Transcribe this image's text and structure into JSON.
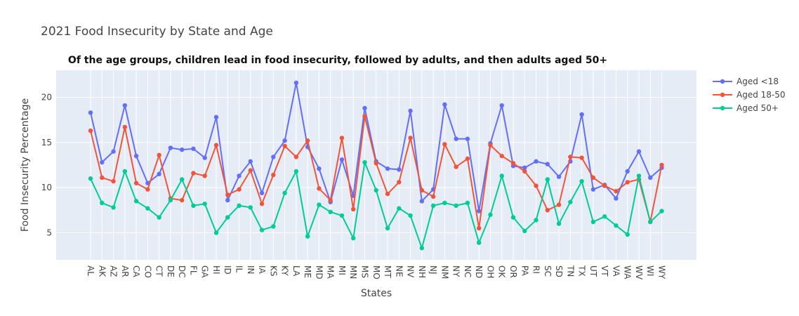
{
  "chart_data": {
    "type": "line",
    "title": "2021 Food Insecurity by State and Age",
    "subtitle": "Of the age groups, children lead in food insecurity, followed by adults, and then adults aged 50+",
    "xlabel": "States",
    "ylabel": "Food Insecurity Percentage",
    "ylim": [
      2,
      23
    ],
    "yticks": [
      5,
      10,
      15,
      20
    ],
    "grid": true,
    "legend_position": "top-right",
    "categories": [
      "AL",
      "AK",
      "AZ",
      "AR",
      "CA",
      "CO",
      "CT",
      "DE",
      "DC",
      "FL",
      "GA",
      "HI",
      "ID",
      "IL",
      "IN",
      "IA",
      "KS",
      "KY",
      "LA",
      "ME",
      "MD",
      "MA",
      "MI",
      "MN",
      "MS",
      "MO",
      "MT",
      "NE",
      "NV",
      "NH",
      "NJ",
      "NM",
      "NY",
      "NC",
      "ND",
      "OH",
      "OK",
      "OR",
      "PA",
      "RI",
      "SC",
      "SD",
      "TN",
      "TX",
      "UT",
      "VT",
      "VA",
      "WA",
      "WV",
      "WI",
      "WY"
    ],
    "series": [
      {
        "name": "Aged <18",
        "color": "#636efa",
        "values": [
          18.3,
          12.8,
          14.0,
          19.1,
          13.5,
          10.5,
          11.5,
          14.4,
          14.2,
          14.3,
          13.3,
          17.8,
          8.6,
          11.3,
          12.9,
          9.4,
          13.4,
          15.2,
          21.6,
          14.5,
          12.1,
          8.4,
          13.1,
          9.1,
          18.8,
          12.9,
          12.1,
          12.0,
          18.5,
          8.5,
          9.8,
          19.2,
          15.4,
          15.4,
          7.4,
          14.9,
          19.1,
          12.4,
          12.2,
          12.9,
          12.6,
          11.2,
          12.9,
          18.1,
          9.8,
          10.3,
          8.8,
          11.8,
          14.0,
          11.1,
          12.2
        ]
      },
      {
        "name": "Aged 18-50",
        "color": "#ef553b",
        "values": [
          16.3,
          11.1,
          10.7,
          16.7,
          10.5,
          9.8,
          13.6,
          8.8,
          8.6,
          11.6,
          11.3,
          14.7,
          9.2,
          9.8,
          11.9,
          8.2,
          11.4,
          14.6,
          13.4,
          15.2,
          9.9,
          8.6,
          15.5,
          7.6,
          17.9,
          12.7,
          9.3,
          10.6,
          15.5,
          9.7,
          9.0,
          14.8,
          12.3,
          13.2,
          5.5,
          14.7,
          13.5,
          12.7,
          11.8,
          10.2,
          7.5,
          8.1,
          13.4,
          13.3,
          11.1,
          10.2,
          9.6,
          10.6,
          10.9,
          6.2,
          12.5
        ]
      },
      {
        "name": "Aged 50+",
        "color": "#00cc96",
        "values": [
          11.0,
          8.3,
          7.8,
          11.8,
          8.5,
          7.7,
          6.7,
          8.6,
          10.9,
          8.0,
          8.2,
          5.0,
          6.7,
          8.0,
          7.8,
          5.3,
          5.7,
          9.4,
          11.8,
          4.6,
          8.1,
          7.3,
          6.9,
          4.4,
          12.8,
          9.7,
          5.5,
          7.7,
          6.9,
          3.3,
          8.0,
          8.3,
          8.0,
          8.3,
          3.9,
          7.0,
          11.3,
          6.7,
          5.2,
          6.4,
          10.9,
          6.0,
          8.4,
          10.7,
          6.2,
          6.8,
          5.8,
          4.8,
          11.3,
          6.2,
          7.4
        ]
      }
    ]
  }
}
